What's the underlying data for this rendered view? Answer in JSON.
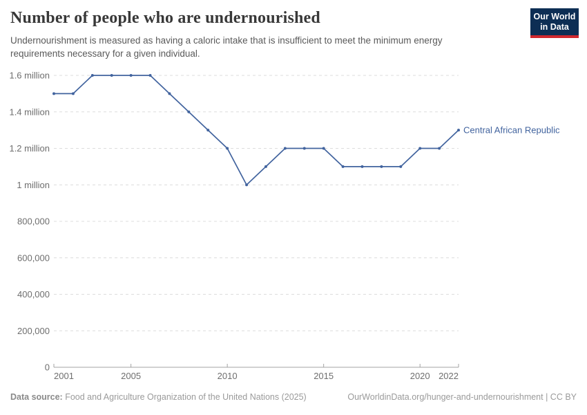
{
  "header": {
    "title": "Number of people who are undernourished",
    "subtitle": "Undernourishment is measured as having a caloric intake that is insufficient to meet the minimum energy requirements necessary for a given individual.",
    "logo": {
      "line1": "Our World",
      "line2": "in Data",
      "bg_color": "#0d2e54",
      "bar_color": "#d0282e"
    }
  },
  "chart_data": {
    "type": "line",
    "title": "Number of people who are undernourished",
    "xlabel": "",
    "ylabel": "",
    "xlim": [
      2001,
      2022
    ],
    "ylim": [
      0,
      1600000
    ],
    "grid": "horizontal-dashed",
    "legend_position": "end-of-line-label",
    "x_ticks": [
      2001,
      2005,
      2010,
      2015,
      2020,
      2022
    ],
    "y_ticks": [
      {
        "value": 0,
        "label": "0"
      },
      {
        "value": 200000,
        "label": "200,000"
      },
      {
        "value": 400000,
        "label": "400,000"
      },
      {
        "value": 600000,
        "label": "600,000"
      },
      {
        "value": 800000,
        "label": "800,000"
      },
      {
        "value": 1000000,
        "label": "1 million"
      },
      {
        "value": 1200000,
        "label": "1.2 million"
      },
      {
        "value": 1400000,
        "label": "1.4 million"
      },
      {
        "value": 1600000,
        "label": "1.6 million"
      }
    ],
    "series": [
      {
        "name": "Central African Republic",
        "color": "#41639e",
        "points": [
          [
            2001,
            1500000
          ],
          [
            2002,
            1500000
          ],
          [
            2003,
            1600000
          ],
          [
            2004,
            1600000
          ],
          [
            2005,
            1600000
          ],
          [
            2006,
            1600000
          ],
          [
            2007,
            1500000
          ],
          [
            2008,
            1400000
          ],
          [
            2009,
            1300000
          ],
          [
            2010,
            1200000
          ],
          [
            2011,
            1000000
          ],
          [
            2012,
            1100000
          ],
          [
            2013,
            1200000
          ],
          [
            2014,
            1200000
          ],
          [
            2015,
            1200000
          ],
          [
            2016,
            1100000
          ],
          [
            2017,
            1100000
          ],
          [
            2018,
            1100000
          ],
          [
            2019,
            1100000
          ],
          [
            2020,
            1200000
          ],
          [
            2021,
            1200000
          ],
          [
            2022,
            1300000
          ]
        ]
      }
    ]
  },
  "footer": {
    "source_label": "Data source:",
    "source_text": " Food and Agriculture Organization of the United Nations (2025)",
    "citation": "OurWorldinData.org/hunger-and-undernourishment | CC BY"
  }
}
